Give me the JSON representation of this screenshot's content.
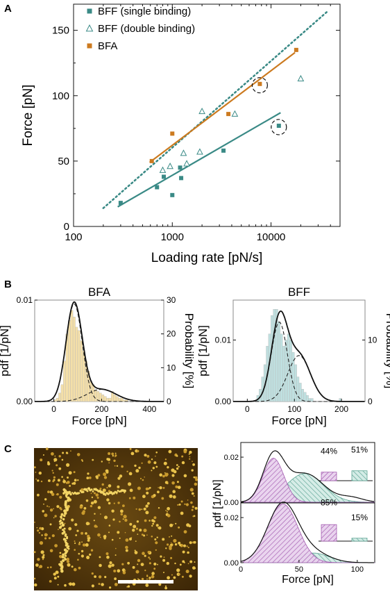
{
  "colors": {
    "teal": "#3a8a86",
    "orange": "#cc7a1f",
    "axis": "#111111",
    "bfa_hist": "#f4dfa8",
    "bff_hist": "#bfe0e0",
    "purple": "#b77cc1",
    "green": "#7fbfae"
  },
  "panel_labels": {
    "a": "A",
    "b": "B",
    "c": "C"
  },
  "chart_data": [
    {
      "id": "A",
      "type": "scatter",
      "xscale": "log",
      "xlabel": "Loading rate [pN/s]",
      "ylabel": "Force [pN]",
      "xlim": [
        100,
        50000
      ],
      "ylim": [
        0,
        170
      ],
      "xticks": [
        100,
        1000,
        10000
      ],
      "xtick_labels": [
        "100",
        "1000",
        "10000"
      ],
      "yticks": [
        0,
        50,
        100,
        150
      ],
      "ytick_labels": [
        "0",
        "50",
        "100",
        "150"
      ],
      "legend_position": "top-left",
      "series": [
        {
          "name": "BFF (single binding)",
          "marker": "square-filled",
          "color": "#3a8a86",
          "x": [
            300,
            700,
            820,
            1000,
            1200,
            1230,
            3300,
            12000
          ],
          "y": [
            18,
            30,
            38,
            24,
            45,
            37,
            58,
            77
          ]
        },
        {
          "name": "BFF (double binding)",
          "marker": "triangle-open",
          "color": "#3a8a86",
          "x": [
            800,
            950,
            1300,
            1400,
            1900,
            2000,
            4300,
            20000
          ],
          "y": [
            43,
            46,
            56,
            48,
            57,
            88,
            86,
            113
          ]
        },
        {
          "name": "BFA",
          "marker": "square-filled",
          "color": "#cc7a1f",
          "x": [
            620,
            1000,
            3700,
            7700,
            18000
          ],
          "y": [
            50,
            71,
            86,
            109,
            135
          ]
        }
      ],
      "fits": [
        {
          "series": "BFF (single binding)",
          "style": "solid",
          "color": "#3a8a86",
          "x": [
            280,
            12500
          ],
          "y": [
            15,
            87
          ]
        },
        {
          "series": "BFF (double binding)",
          "style": "dotted",
          "color": "#3a8a86",
          "x": [
            200,
            38000
          ],
          "y": [
            14,
            165
          ]
        },
        {
          "series": "BFA",
          "style": "solid",
          "color": "#cc7a1f",
          "x": [
            590,
            17500
          ],
          "y": [
            49,
            133
          ]
        }
      ],
      "circled_points": [
        {
          "x": 7700,
          "y": 108
        },
        {
          "x": 12000,
          "y": 76
        }
      ]
    },
    {
      "id": "B-left",
      "type": "area",
      "title": "BFA",
      "xlabel": "Force [pN]",
      "ylabel": "pdf [1/pN]",
      "ylabel_right": "Probability [%]",
      "xlim": [
        -80,
        460
      ],
      "ylim": [
        0,
        0.01
      ],
      "ylim_right": [
        0,
        30
      ],
      "xticks": [
        0,
        200,
        400
      ],
      "xtick_labels": [
        "0",
        "200",
        "400"
      ],
      "yticks": [
        0,
        0.01
      ],
      "ytick_labels": [
        "0.00",
        "0.01"
      ],
      "yticks_right": [
        0,
        10,
        20,
        30
      ],
      "ytick_labels_right": [
        "0",
        "10",
        "20",
        "30"
      ],
      "histogram": {
        "bin_start": 0,
        "bin_width": 10,
        "values": [
          0.5,
          1,
          2.5,
          5,
          12,
          20,
          24,
          27,
          25,
          22,
          21,
          18,
          15,
          12,
          9,
          6,
          5,
          3.5,
          3,
          2.5,
          2,
          1.5,
          1,
          1,
          3,
          2,
          1.5,
          1,
          1,
          0.5,
          0.5
        ]
      },
      "pdf_total": {
        "type": "mixture",
        "components": [
          {
            "w": 0.82,
            "mu": 85,
            "sigma": 34
          },
          {
            "w": 0.18,
            "mu": 200,
            "sigma": 60
          }
        ]
      },
      "pdf_components_dashed": [
        {
          "w": 0.82,
          "mu": 85,
          "sigma": 34
        },
        {
          "w": 0.18,
          "mu": 200,
          "sigma": 60
        }
      ]
    },
    {
      "id": "B-right",
      "type": "area",
      "title": "BFF",
      "xlabel": "Force [pN]",
      "ylabel": "pdf [1/pN]",
      "ylabel_right": "Probability [%]",
      "xlim": [
        -30,
        250
      ],
      "ylim": [
        0,
        0.0165
      ],
      "ylim_right": [
        0,
        16.5
      ],
      "xticks": [
        0,
        100,
        200
      ],
      "xtick_labels": [
        "0",
        "100",
        "200"
      ],
      "yticks": [
        0,
        0.01
      ],
      "ytick_labels": [
        "0.00",
        "0.01"
      ],
      "yticks_right": [
        0,
        10
      ],
      "ytick_labels_right": [
        "0",
        "10"
      ],
      "histogram": {
        "bin_start": 20,
        "bin_width": 5,
        "values": [
          1,
          2,
          4,
          6,
          9,
          11,
          14,
          15,
          15,
          13,
          11,
          9,
          10,
          11,
          10,
          8,
          6,
          4,
          3,
          2,
          1.5,
          1,
          0.5,
          0.5,
          0,
          0,
          0,
          0,
          0,
          0,
          0,
          0,
          0,
          0,
          0,
          0.5
        ]
      },
      "pdf_total": {
        "type": "mixture",
        "components": [
          {
            "w": 0.55,
            "mu": 68,
            "sigma": 17
          },
          {
            "w": 0.45,
            "mu": 110,
            "sigma": 24
          }
        ]
      },
      "pdf_components_dashed": [
        {
          "w": 0.55,
          "mu": 68,
          "sigma": 17
        },
        {
          "w": 0.45,
          "mu": 110,
          "sigma": 24
        }
      ]
    },
    {
      "id": "C-top",
      "type": "area",
      "xlabel": "",
      "ylabel": "",
      "xlim": [
        0,
        115
      ],
      "ylim": [
        0,
        0.0265
      ],
      "yticks": [
        0,
        0.02
      ],
      "ytick_labels": [
        "0.00",
        "0.02"
      ],
      "components": [
        {
          "color": "#b77cc1",
          "w": 0.44,
          "mu": 28,
          "sigma": 9
        },
        {
          "color": "#7fbfae",
          "w": 0.51,
          "mu": 55,
          "sigma": 16
        }
      ],
      "total_extra": {
        "w": 0.05,
        "mu": 95,
        "sigma": 10
      },
      "inset": {
        "labels": [
          "44%",
          "51%"
        ],
        "values": [
          44,
          51
        ],
        "colors": [
          "#b77cc1",
          "#7fbfae"
        ]
      }
    },
    {
      "id": "C-bottom",
      "type": "area",
      "xlabel": "Force [pN]",
      "ylabel": "pdf [1/pN]",
      "xlim": [
        0,
        115
      ],
      "ylim": [
        0,
        0.0265
      ],
      "xticks": [
        0,
        50,
        100
      ],
      "xtick_labels": [
        "0",
        "50",
        "100"
      ],
      "yticks": [
        0,
        0.02
      ],
      "ytick_labels": [
        "0.00",
        "0.02"
      ],
      "components": [
        {
          "color": "#b77cc1",
          "w": 0.85,
          "mu": 36,
          "sigma": 13
        },
        {
          "color": "#7fbfae",
          "w": 0.15,
          "mu": 62,
          "sigma": 14
        }
      ],
      "inset": {
        "labels": [
          "85%",
          "15%"
        ],
        "values": [
          85,
          15
        ],
        "colors": [
          "#b77cc1",
          "#7fbfae"
        ]
      }
    }
  ]
}
